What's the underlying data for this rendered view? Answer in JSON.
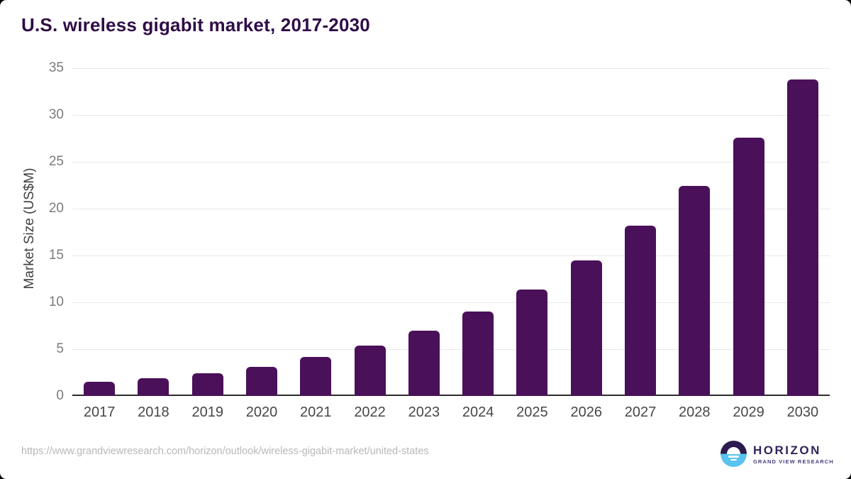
{
  "header": {
    "title": "U.S. wireless gigabit market, 2017-2030"
  },
  "chart_data": {
    "type": "bar",
    "title": "U.S. wireless gigabit market, 2017-2030",
    "categories": [
      "2017",
      "2018",
      "2019",
      "2020",
      "2021",
      "2022",
      "2023",
      "2024",
      "2025",
      "2026",
      "2027",
      "2028",
      "2029",
      "2030"
    ],
    "values": [
      1.5,
      1.9,
      2.4,
      3.1,
      4.2,
      5.4,
      7.0,
      9.0,
      11.4,
      14.5,
      18.2,
      22.4,
      27.6,
      33.8
    ],
    "xlabel": "",
    "ylabel": "Market Size (US$M)",
    "ylim": [
      0,
      35
    ],
    "ytick_step": 5,
    "grid": true,
    "legend": false,
    "bar_color": "#4a1059"
  },
  "footer": {
    "source_url": "https://www.grandviewresearch.com/horizon/outlook/wireless-gigabit-market/united-states",
    "logo": {
      "name": "HORIZON",
      "subtitle": "GRAND VIEW RESEARCH"
    }
  },
  "colors": {
    "title": "#2f0d46",
    "bar": "#4a1059",
    "axis_line": "#2b2b2b",
    "gridline": "#e8e8e8",
    "y_tick_text": "#7b7b7b",
    "x_tick_text": "#474747",
    "url_text": "#b8b8b8",
    "logo_navy": "#2c1b4f",
    "logo_blue": "#58c3ef"
  }
}
